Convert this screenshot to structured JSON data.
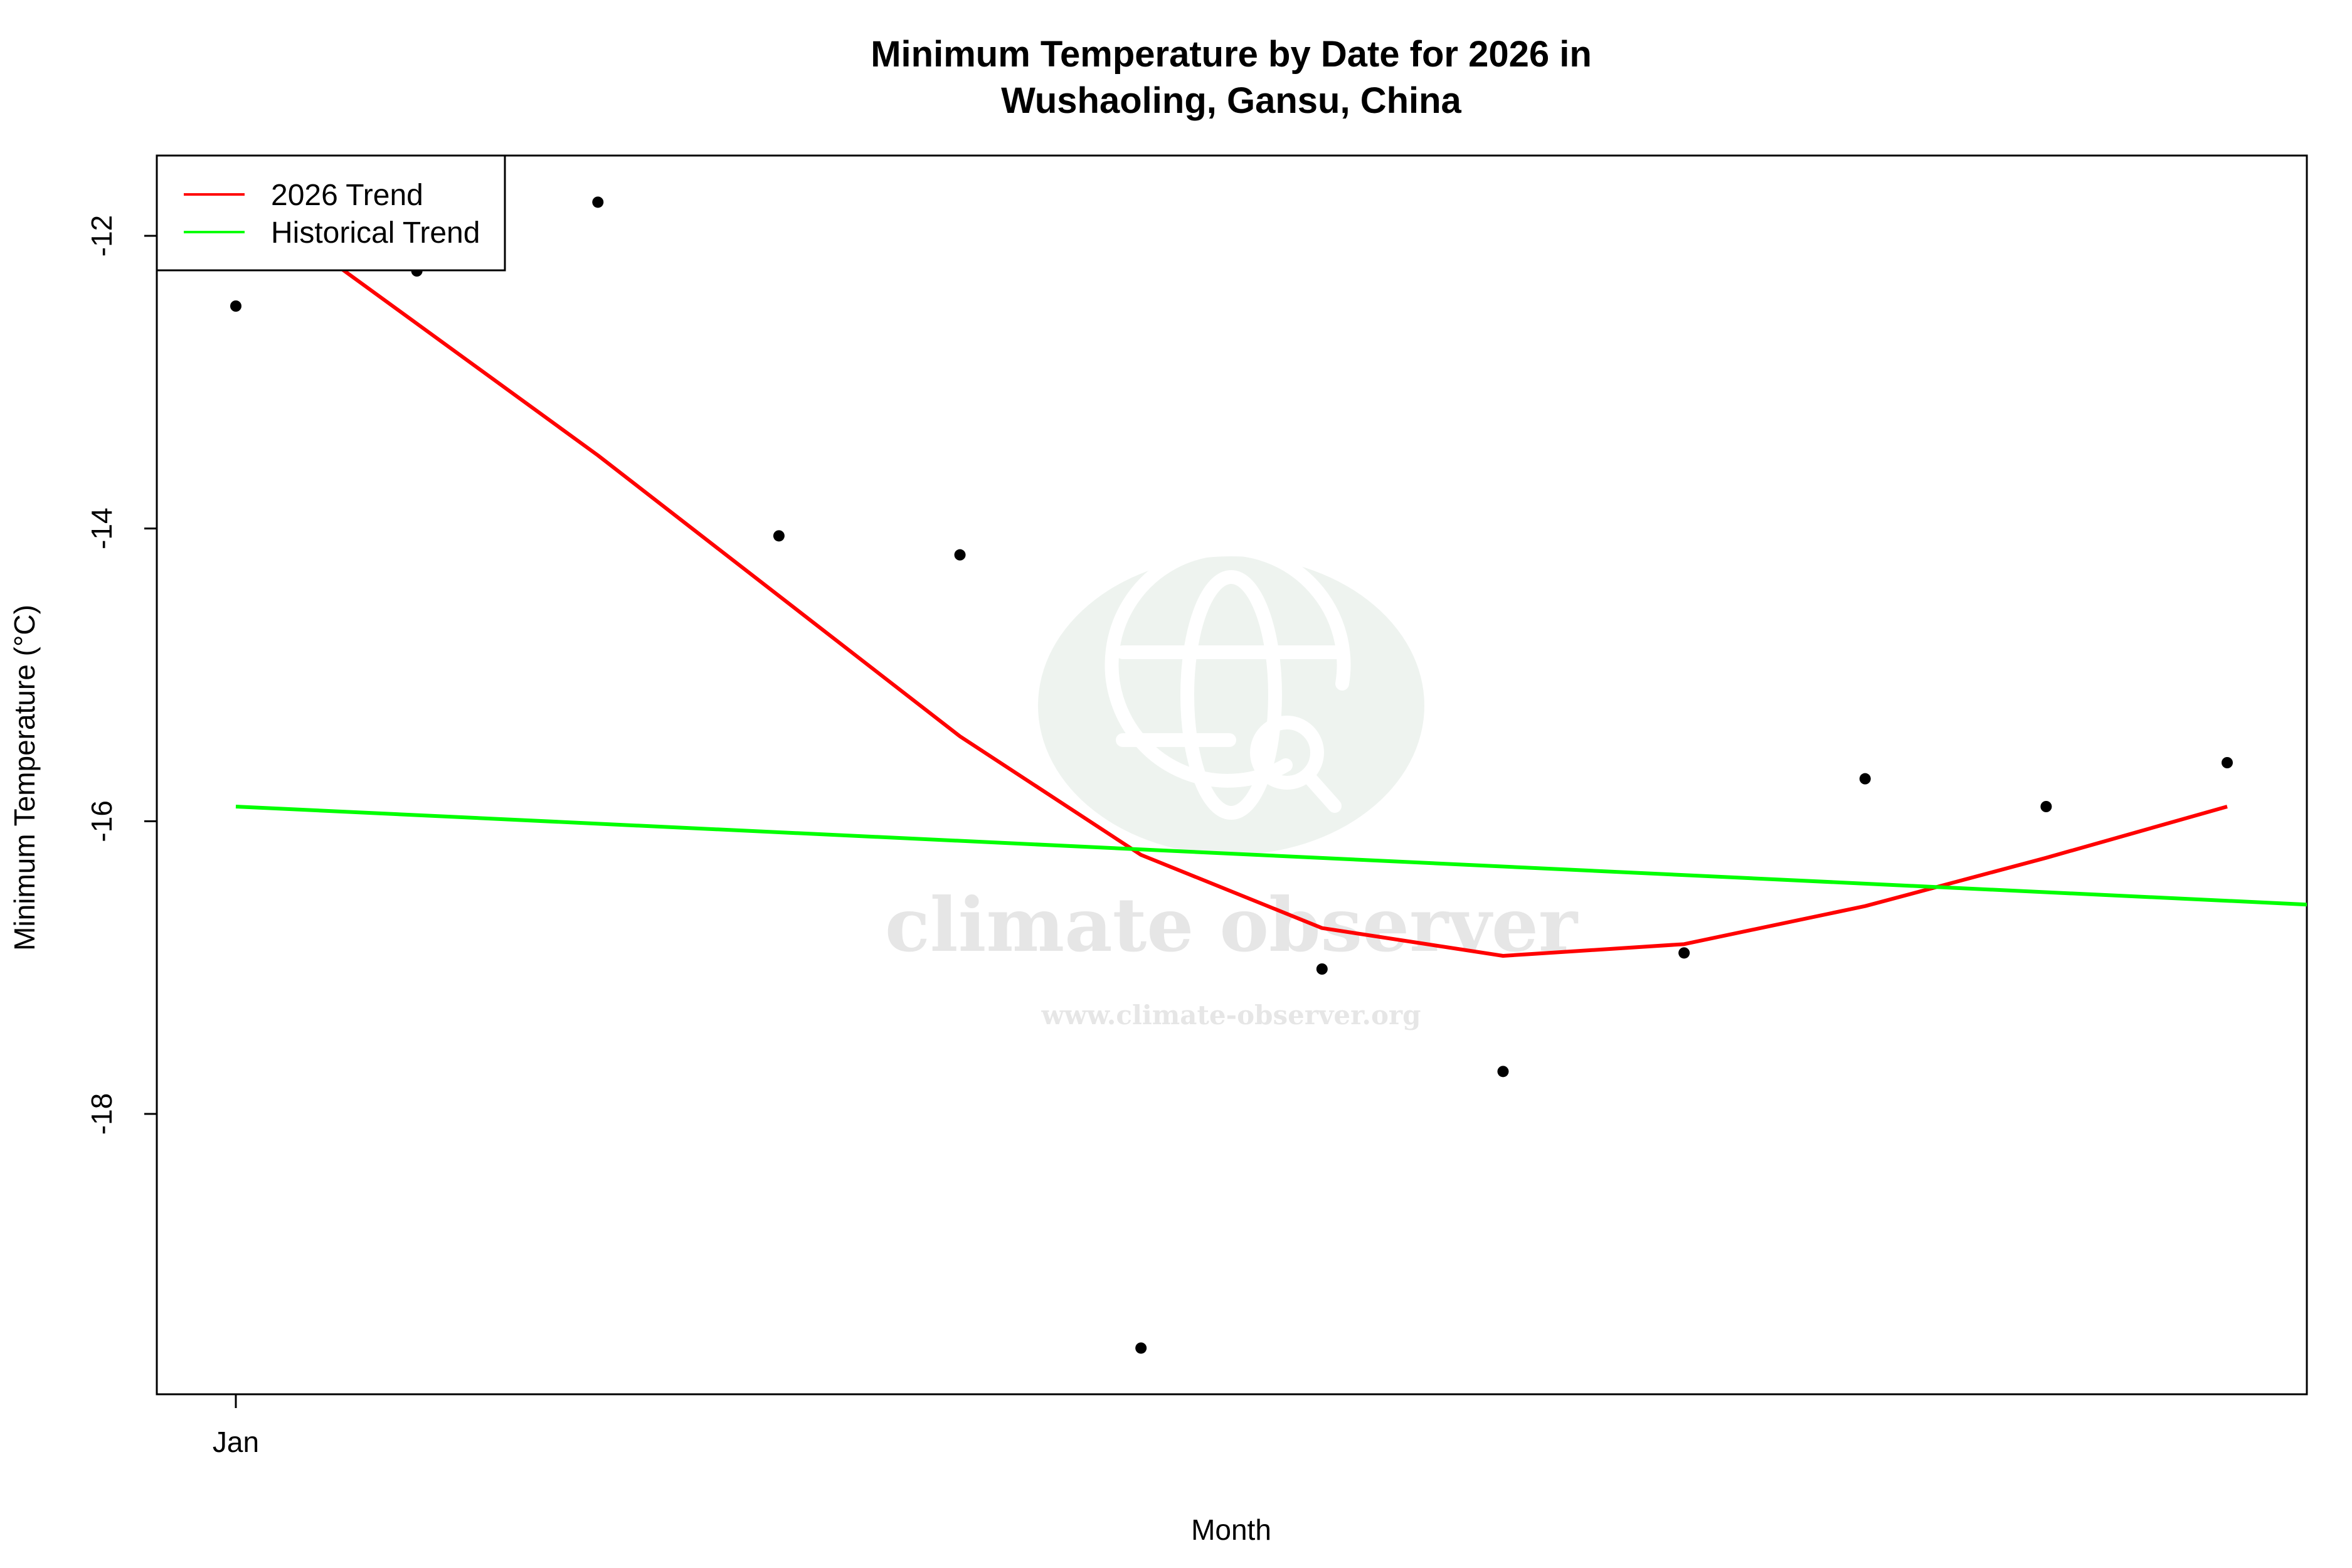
{
  "chart_data": {
    "type": "line",
    "title": "Minimum Temperature by Date for 2026 in\nWushaoling, Gansu, China",
    "title_lines": [
      "Minimum Temperature by Date for 2026 in",
      "Wushaoling, Gansu, China"
    ],
    "xlabel": "Month",
    "ylabel": "Minimum Temperature (°C)",
    "x_tick_labels": [
      "Jan"
    ],
    "y_ticks": [
      -12,
      -14,
      -16,
      -18
    ],
    "y_tick_labels": [
      "-12",
      "-14",
      "-16",
      "-18"
    ],
    "ylim": [
      -19.9,
      -11.5
    ],
    "x_index_range": [
      0.55,
      12.45
    ],
    "grid": false,
    "legend_position": "top-left",
    "legend": [
      {
        "label": "2026 Trend",
        "color": "#ff0000"
      },
      {
        "label": "Historical Trend",
        "color": "#00ff00"
      }
    ],
    "x": [
      1,
      2,
      3,
      4,
      5,
      6,
      7,
      8,
      9,
      10,
      11,
      12
    ],
    "series": [
      {
        "name": "Observed daily minimum (2026)",
        "kind": "scatter",
        "color": "#000000",
        "values": [
          -12.48,
          -12.24,
          -11.77,
          -14.05,
          -14.18,
          -19.6,
          -17.01,
          -17.71,
          -16.9,
          -15.71,
          -15.9,
          -15.6
        ]
      },
      {
        "name": "2026 Trend",
        "kind": "line",
        "color": "#ff0000",
        "values": [
          -11.7,
          -12.6,
          -13.5,
          -14.46,
          -15.42,
          -16.23,
          -16.73,
          -16.92,
          -16.84,
          -16.58,
          -16.25,
          -15.9
        ]
      },
      {
        "name": "Historical Trend",
        "kind": "line",
        "color": "#00ff00",
        "x_start": 1,
        "x_end": 12.45,
        "values_endpoints": [
          -15.9,
          -16.57
        ]
      }
    ],
    "watermark": {
      "brand": "climate observer",
      "url": "www.climate-observer.org"
    }
  }
}
